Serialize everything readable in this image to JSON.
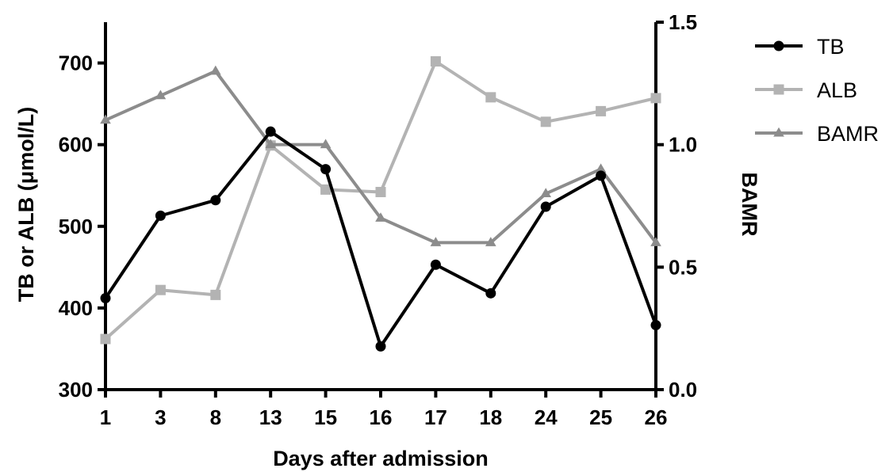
{
  "chart_data": {
    "type": "line",
    "categories": [
      "1",
      "3",
      "8",
      "13",
      "15",
      "16",
      "17",
      "18",
      "24",
      "25",
      "26"
    ],
    "xlabel": "Days after admission",
    "ylabel": "TB or ALB (μmol/L)",
    "ylabel_right": "BAMR",
    "ylim": [
      300,
      750
    ],
    "ylim_right": [
      0,
      1.5
    ],
    "yticks": [
      "300",
      "400",
      "500",
      "600",
      "700"
    ],
    "yticks_right": [
      "0.0",
      "0.5",
      "1.0",
      "1.5"
    ],
    "legend_position": "top-right",
    "series": [
      {
        "name": "TB",
        "axis": "left",
        "marker": "circle",
        "color": "#000000",
        "values": [
          412,
          513,
          532,
          616,
          570,
          353,
          453,
          418,
          524,
          562,
          379
        ]
      },
      {
        "name": "ALB",
        "axis": "left",
        "marker": "square",
        "color": "#b3b3b3",
        "values": [
          362,
          422,
          416,
          599,
          545,
          542,
          702,
          658,
          628,
          641,
          657
        ]
      },
      {
        "name": "BAMR",
        "axis": "right",
        "marker": "triangle",
        "color": "#8c8c8c",
        "values": [
          1.1,
          1.2,
          1.3,
          1.0,
          1.0,
          0.7,
          0.6,
          0.6,
          0.8,
          0.9,
          0.6
        ]
      }
    ]
  }
}
